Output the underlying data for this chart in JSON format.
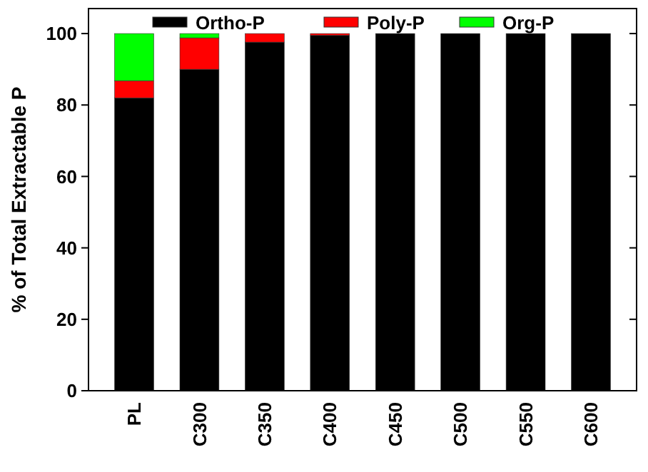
{
  "chart_data": {
    "type": "bar",
    "stacked": true,
    "ylabel": "% of Total Extractable P",
    "categories": [
      "PL",
      "C300",
      "C350",
      "C400",
      "C450",
      "C500",
      "C550",
      "C600"
    ],
    "series": [
      {
        "name": "Ortho-P",
        "color": "#000000",
        "values": [
          82,
          90,
          97.6,
          99.5,
          100,
          100,
          100,
          100
        ]
      },
      {
        "name": "Poly-P",
        "color": "#ff0000",
        "values": [
          4.8,
          8.8,
          2.4,
          0.5,
          0,
          0,
          0,
          0
        ]
      },
      {
        "name": "Org-P",
        "color": "#00ff00",
        "values": [
          13.2,
          1.2,
          0,
          0,
          0,
          0,
          0,
          0
        ]
      }
    ],
    "ylim": [
      0,
      107
    ],
    "yticks": [
      0,
      20,
      40,
      60,
      80,
      100
    ],
    "legend": "top",
    "grid": false
  }
}
